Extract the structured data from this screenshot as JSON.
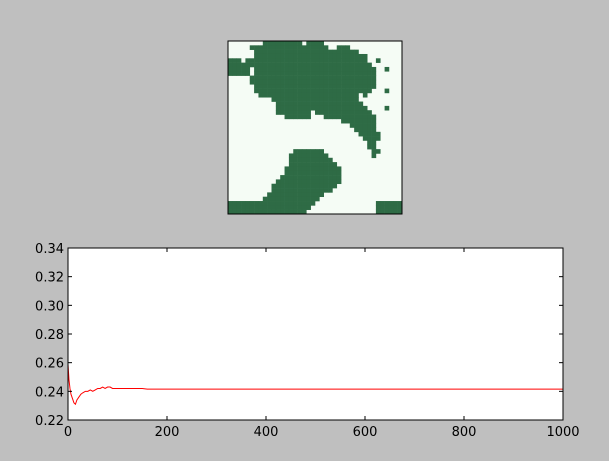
{
  "window": {
    "background_color": "#bfbfbf"
  },
  "chart_data": [
    {
      "type": "heatmap",
      "title": "",
      "grid_size": 40,
      "colors": {
        "filled": "#2e6b45",
        "empty": "#f5fcf5"
      },
      "xticks_visible": false,
      "yticks_visible": false,
      "fill_fraction_estimate": 0.55,
      "rows": [
        "0000000011111111101111000000000000000000",
        "0000011111111111111111100111000000000000",
        "0000001111111111111111111111110000000000",
        "0000001111111111111111111111111100000000",
        "1110111111111111111111111111111100100000",
        "1111111111111111111111111111111110000000",
        "1111101111111111111111111111111111001000",
        "1111101111111111111111111111111111000000",
        "0000011111111111111111111111111111000000",
        "0000011111111111111111111111111111000000",
        "0000001111111111111111111111111111000000",
        "0000001111111111111111111111111110001000",
        "0000000111111111111111111111110100000000",
        "0000000000111111111111111111110000000000",
        "0000000000011111111111111111111000000000",
        "0000000000011111111111111111111100001000",
        "0000000000011111111011111111111110000000",
        "0000000000000111111000111111111111000000",
        "0000000000000000000000000011111111000000",
        "0000000000000000000000000000111111000000",
        "0000000000000000000000000000011111000000",
        "0000000000000000000000000000001111100000",
        "0000000000000000000000000000000111100000",
        "0000000000000000000000000000000011000000",
        "0000000000000000000000000000000011000000",
        "0000000000000001111111000000000001100000",
        "0000000000000011111111100000000001000000",
        "0000000000000011111111110000000000000000",
        "0000000000000011111111111000000000000000",
        "0000000000000111111111111100000000000000",
        "0000000000000111111111111100000000000000",
        "0000000000001111111111111100000000000000",
        "0000000000011111111111111100000000000000",
        "0000000000111111111111111000000000000000",
        "0000000000111111111111110000000000000000",
        "0000000001111111111111000000000000000000",
        "0000000011111111111110000000000000000000",
        "1111111111111111111100000000000000111111",
        "1111111111111111111000000000000000111111",
        "1111111111111111110000000000000000111111"
      ]
    },
    {
      "type": "line",
      "title": "",
      "xlabel": "",
      "ylabel": "",
      "xlim": [
        0,
        1000
      ],
      "ylim": [
        0.22,
        0.34
      ],
      "xticks": [
        0,
        200,
        400,
        600,
        800,
        1000
      ],
      "yticks": [
        0.22,
        0.24,
        0.26,
        0.28,
        0.3,
        0.32,
        0.34
      ],
      "xtick_labels": [
        "0",
        "200",
        "400",
        "600",
        "800",
        "1000"
      ],
      "ytick_labels": [
        "0.22",
        "0.24",
        "0.26",
        "0.28",
        "0.30",
        "0.32",
        "0.34"
      ],
      "grid": false,
      "series": [
        {
          "color": "#ff0000",
          "x": [
            0,
            2,
            4,
            6,
            8,
            10,
            12,
            15,
            18,
            22,
            26,
            30,
            35,
            40,
            45,
            50,
            55,
            60,
            65,
            70,
            75,
            80,
            85,
            90,
            95,
            100,
            110,
            120,
            130,
            140,
            150,
            160,
            180,
            200,
            250,
            300,
            400,
            500,
            600,
            700,
            800,
            900,
            1000
          ],
          "y": [
            0.259,
            0.248,
            0.242,
            0.238,
            0.236,
            0.234,
            0.232,
            0.231,
            0.234,
            0.236,
            0.238,
            0.239,
            0.24,
            0.24,
            0.241,
            0.24,
            0.241,
            0.242,
            0.242,
            0.243,
            0.242,
            0.243,
            0.243,
            0.242,
            0.242,
            0.242,
            0.242,
            0.242,
            0.242,
            0.242,
            0.242,
            0.2415,
            0.2415,
            0.2415,
            0.2415,
            0.2415,
            0.2415,
            0.2415,
            0.2415,
            0.2415,
            0.2415,
            0.2415,
            0.2415
          ]
        }
      ]
    }
  ]
}
